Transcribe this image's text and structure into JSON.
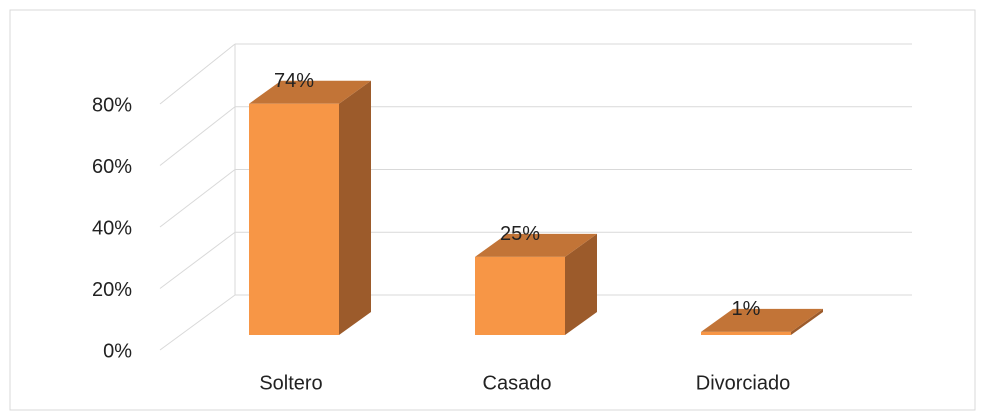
{
  "chart_data": {
    "type": "bar3d",
    "categories": [
      "Soltero",
      "Casado",
      "Divorciado"
    ],
    "values": [
      74,
      25,
      1
    ],
    "value_labels": [
      "74%",
      "25%",
      "1%"
    ],
    "color": "#f79646",
    "ylim": [
      0,
      80
    ],
    "yticks": [
      {
        "value": 0,
        "label": "0%"
      },
      {
        "value": 20,
        "label": "20%"
      },
      {
        "value": 40,
        "label": "40%"
      },
      {
        "value": 60,
        "label": "60%"
      },
      {
        "value": 80,
        "label": "80%"
      }
    ],
    "grid": true
  }
}
